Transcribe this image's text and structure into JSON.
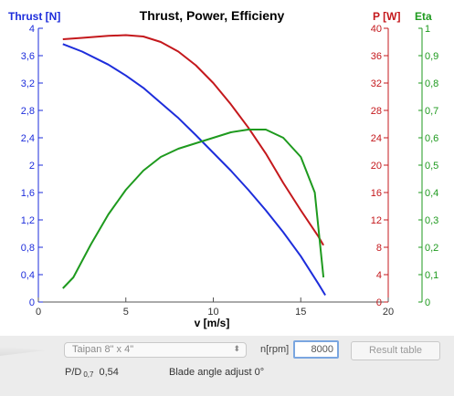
{
  "header": {
    "title": "Thrust, Power, Efficieny",
    "thrust_axis_label": "Thrust [N]",
    "power_axis_label": "P [W]",
    "eta_axis_label": "Eta"
  },
  "controls": {
    "propeller": "Taipan 8\" x 4\"",
    "rpm_label": "n[rpm]",
    "rpm_value": "8000",
    "result_table_label": "Result table",
    "pd_label": "P/D",
    "pd_subscript": "0,7",
    "pd_value": "0,54",
    "blade_angle_text": "Blade angle adjust 0°"
  },
  "colors": {
    "thrust": "#1d2ddb",
    "power": "#c4181c",
    "eta": "#1e9a1e",
    "title": "#000000"
  },
  "chart_data": {
    "type": "line",
    "title": "Thrust, Power, Efficieny",
    "xlabel": "v [m/s]",
    "x_ticks": [
      "0",
      "5",
      "10",
      "15",
      "20"
    ],
    "xlim": [
      0,
      20
    ],
    "thrust_axis": {
      "label": "Thrust [N]",
      "range": [
        0,
        4
      ],
      "ticks": [
        "0",
        "0,4",
        "0,8",
        "1,2",
        "1,6",
        "2",
        "2,4",
        "2,8",
        "3,2",
        "3,6",
        "4"
      ]
    },
    "power_axis": {
      "label": "P [W]",
      "range": [
        0,
        40
      ],
      "ticks": [
        "0",
        "4",
        "8",
        "12",
        "16",
        "20",
        "24",
        "28",
        "32",
        "36",
        "40"
      ]
    },
    "eta_axis": {
      "label": "Eta",
      "range": [
        0,
        1
      ],
      "ticks": [
        "0",
        "0,1",
        "0,2",
        "0,3",
        "0,4",
        "0,5",
        "0,6",
        "0,7",
        "0,8",
        "0,9",
        "1"
      ]
    },
    "grid": false,
    "series": [
      {
        "axis": "thrust",
        "color": "#1d2ddb",
        "points": [
          [
            1.4,
            3.77
          ],
          [
            2.5,
            3.66
          ],
          [
            4,
            3.47
          ],
          [
            5,
            3.31
          ],
          [
            6,
            3.13
          ],
          [
            7,
            2.91
          ],
          [
            8,
            2.69
          ],
          [
            9,
            2.44
          ],
          [
            10,
            2.18
          ],
          [
            11,
            1.92
          ],
          [
            12,
            1.64
          ],
          [
            13,
            1.34
          ],
          [
            14,
            1.02
          ],
          [
            15,
            0.67
          ],
          [
            16,
            0.27
          ],
          [
            16.4,
            0.1
          ]
        ]
      },
      {
        "axis": "power",
        "color": "#c4181c",
        "points": [
          [
            1.4,
            38.4
          ],
          [
            2.5,
            38.6
          ],
          [
            4,
            38.9
          ],
          [
            5,
            39.0
          ],
          [
            6,
            38.8
          ],
          [
            7,
            38.0
          ],
          [
            8,
            36.6
          ],
          [
            9,
            34.6
          ],
          [
            10,
            32.0
          ],
          [
            11,
            28.9
          ],
          [
            12,
            25.5
          ],
          [
            13,
            21.7
          ],
          [
            14,
            17.4
          ],
          [
            15,
            13.4
          ],
          [
            16,
            9.6
          ],
          [
            16.3,
            8.3
          ]
        ]
      },
      {
        "axis": "eta",
        "color": "#1e9a1e",
        "points": [
          [
            1.4,
            0.05
          ],
          [
            2,
            0.09
          ],
          [
            3,
            0.21
          ],
          [
            4,
            0.32
          ],
          [
            5,
            0.41
          ],
          [
            6,
            0.48
          ],
          [
            7,
            0.53
          ],
          [
            8,
            0.56
          ],
          [
            9,
            0.58
          ],
          [
            10,
            0.6
          ],
          [
            11,
            0.62
          ],
          [
            12,
            0.63
          ],
          [
            13,
            0.63
          ],
          [
            14,
            0.6
          ],
          [
            15,
            0.53
          ],
          [
            15.8,
            0.4
          ],
          [
            16.3,
            0.09
          ]
        ]
      }
    ]
  }
}
